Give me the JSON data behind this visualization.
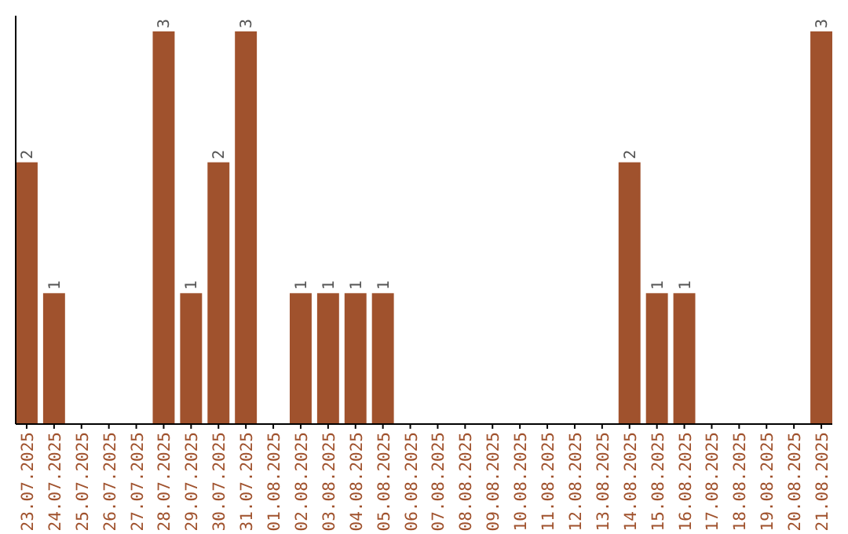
{
  "chart_data": {
    "type": "bar",
    "categories": [
      "23.07.2025",
      "24.07.2025",
      "25.07.2025",
      "26.07.2025",
      "27.07.2025",
      "28.07.2025",
      "29.07.2025",
      "30.07.2025",
      "31.07.2025",
      "01.08.2025",
      "02.08.2025",
      "03.08.2025",
      "04.08.2025",
      "05.08.2025",
      "06.08.2025",
      "07.08.2025",
      "08.08.2025",
      "09.08.2025",
      "10.08.2025",
      "11.08.2025",
      "12.08.2025",
      "13.08.2025",
      "14.08.2025",
      "15.08.2025",
      "16.08.2025",
      "17.08.2025",
      "18.08.2025",
      "19.08.2025",
      "20.08.2025",
      "21.08.2025"
    ],
    "values": [
      2,
      1,
      0,
      0,
      0,
      3,
      1,
      2,
      3,
      0,
      1,
      1,
      1,
      1,
      0,
      0,
      0,
      0,
      0,
      0,
      0,
      0,
      2,
      1,
      1,
      0,
      0,
      0,
      0,
      3
    ],
    "value_labels": [
      "2",
      "1",
      null,
      null,
      null,
      "3",
      "1",
      "2",
      "3",
      null,
      "1",
      "1",
      "1",
      "1",
      null,
      null,
      null,
      null,
      null,
      null,
      null,
      null,
      "2",
      "1",
      "1",
      null,
      null,
      null,
      null,
      "3"
    ],
    "color": "#a0522d",
    "ylim": [
      0,
      3.12
    ],
    "tick_labels": "x"
  }
}
